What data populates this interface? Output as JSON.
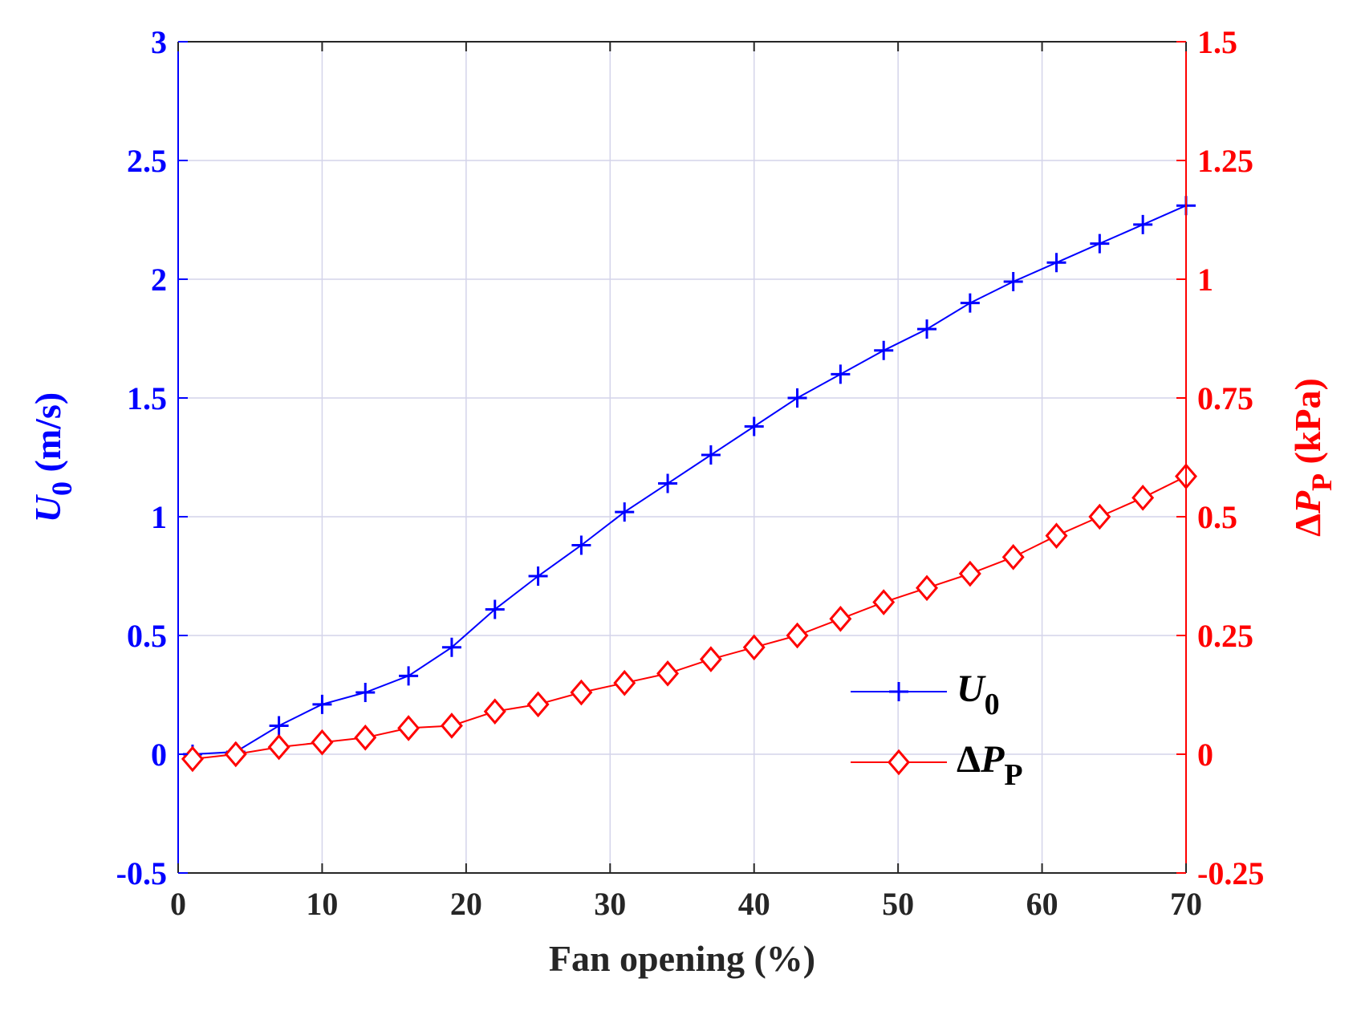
{
  "chart_data": {
    "type": "line",
    "xlabel": "Fan opening (%)",
    "xlim": [
      0,
      70
    ],
    "x_ticks": [
      0,
      10,
      20,
      30,
      40,
      50,
      60,
      70
    ],
    "y_left": {
      "label_main": "U",
      "label_sub": "0",
      "label_unit": " (m/s)",
      "lim": [
        -0.5,
        3
      ],
      "ticks": [
        -0.5,
        0,
        0.5,
        1,
        1.5,
        2,
        2.5,
        3
      ],
      "tick_labels": [
        "-0.5",
        "0",
        "0.5",
        "1",
        "1.5",
        "2",
        "2.5",
        "3"
      ],
      "color": "#0000ff"
    },
    "y_right": {
      "label_delta": "Δ",
      "label_main": "P",
      "label_sub": "P",
      "label_unit": " (kPa)",
      "lim": [
        -0.25,
        1.5
      ],
      "ticks": [
        -0.25,
        0,
        0.25,
        0.5,
        0.75,
        1,
        1.25,
        1.5
      ],
      "tick_labels": [
        "-0.25",
        "0",
        "0.25",
        "0.5",
        "0.75",
        "1",
        "1.25",
        "1.5"
      ],
      "color": "#ff0000"
    },
    "grid": true,
    "legend": "center-right",
    "series": [
      {
        "name_main": "U",
        "name_sub": "0",
        "axis": "left",
        "color": "#0000ff",
        "marker": "plus",
        "x": [
          1,
          4,
          7,
          10,
          13,
          16,
          19,
          22,
          25,
          28,
          31,
          34,
          37,
          40,
          43,
          46,
          49,
          52,
          55,
          58,
          61,
          64,
          67,
          70
        ],
        "values": [
          0.0,
          0.01,
          0.12,
          0.21,
          0.26,
          0.33,
          0.45,
          0.61,
          0.75,
          0.88,
          1.02,
          1.14,
          1.26,
          1.38,
          1.5,
          1.6,
          1.7,
          1.79,
          1.9,
          1.99,
          2.07,
          2.15,
          2.23,
          2.31
        ]
      },
      {
        "name_delta": "Δ",
        "name_main": "P",
        "name_sub": "P",
        "axis": "right",
        "color": "#ff0000",
        "marker": "diamond",
        "x": [
          1,
          4,
          7,
          10,
          13,
          16,
          19,
          22,
          25,
          28,
          31,
          34,
          37,
          40,
          43,
          46,
          49,
          52,
          55,
          58,
          61,
          64,
          67,
          70
        ],
        "values": [
          -0.01,
          0.0,
          0.015,
          0.025,
          0.035,
          0.055,
          0.06,
          0.09,
          0.105,
          0.13,
          0.15,
          0.17,
          0.2,
          0.225,
          0.25,
          0.285,
          0.32,
          0.35,
          0.38,
          0.415,
          0.46,
          0.5,
          0.54,
          0.585
        ]
      }
    ]
  }
}
